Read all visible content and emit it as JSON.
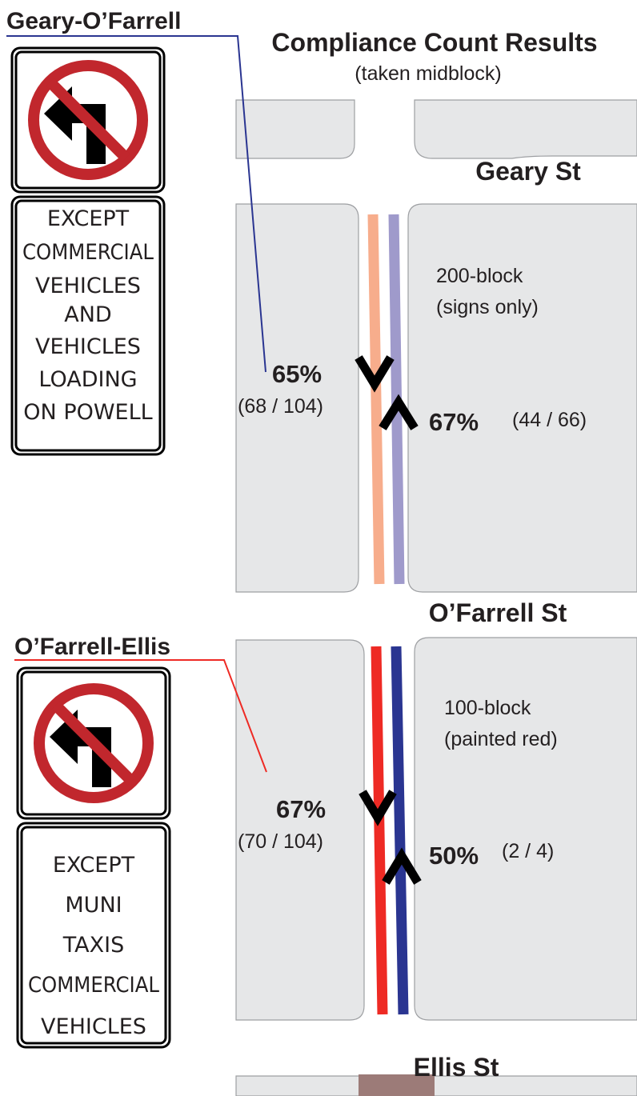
{
  "title": "Compliance Count Results",
  "subtitle": "(taken midblock)",
  "streets": [
    "Geary St",
    "O’Farrell St",
    "Ellis St"
  ],
  "segments": [
    {
      "label": "Geary-O’Farrell",
      "sign_lines": [
        "EXCEPT",
        "COMMERCIAL",
        "VEHICLES",
        "AND",
        "VEHICLES",
        "LOADING",
        "ON POWELL"
      ],
      "block": [
        "200-block",
        "(signs only)"
      ],
      "southbound": {
        "pct": "65%",
        "count": "(68 / 104)"
      },
      "northbound": {
        "pct": "67%",
        "count": "(44 / 66)"
      }
    },
    {
      "label": "O’Farrell-Ellis",
      "sign_lines": [
        "EXCEPT",
        "MUNI",
        "TAXIS",
        "COMMERCIAL",
        "VEHICLES"
      ],
      "block": [
        "100-block",
        "(painted red)"
      ],
      "southbound": {
        "pct": "67%",
        "count": "(70 / 104)"
      },
      "northbound": {
        "pct": "50%",
        "count": "(2 / 4)"
      }
    }
  ]
}
